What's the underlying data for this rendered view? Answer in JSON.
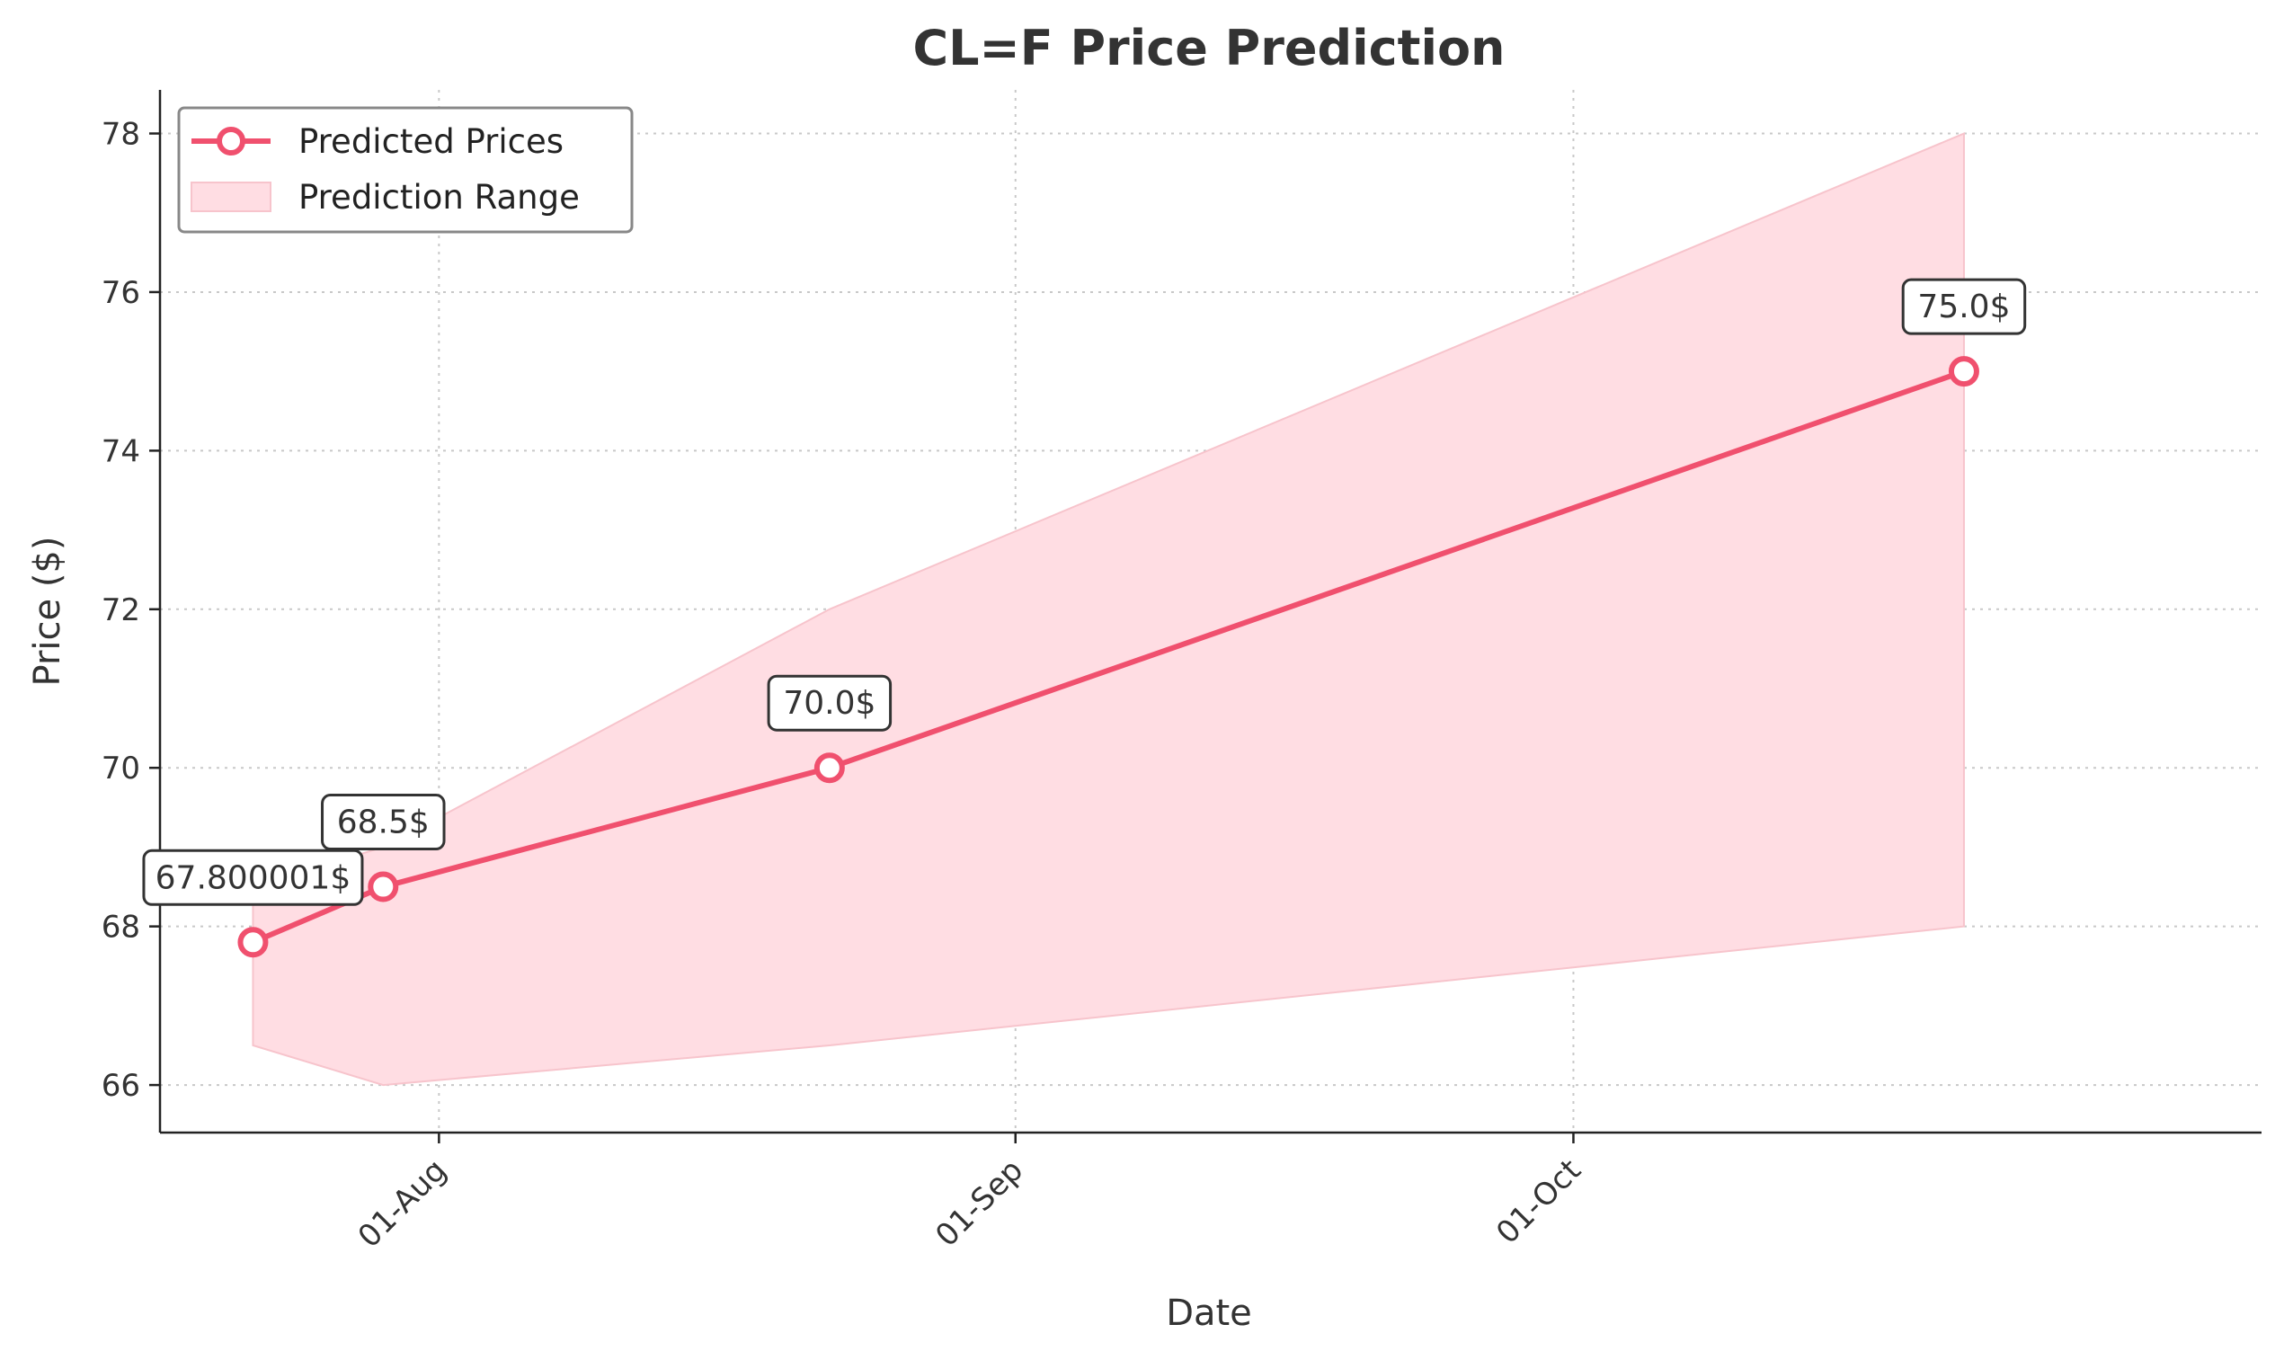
{
  "chart_data": {
    "type": "line",
    "title": "CL=F Price Prediction",
    "xlabel": "Date",
    "ylabel": "Price ($)",
    "x": [
      "2024-07-22",
      "2024-07-29",
      "2024-08-22",
      "2024-10-22"
    ],
    "series": [
      {
        "name": "Predicted Prices",
        "values": [
          67.800001,
          68.5,
          70.0,
          75.0
        ],
        "color": "#f0506e",
        "marker": "circle-hollow"
      }
    ],
    "range": {
      "name": "Prediction Range",
      "lower": [
        66.5,
        66.0,
        66.5,
        68.0
      ],
      "upper": [
        68.5,
        69.0,
        72.0,
        78.0
      ],
      "color": "#ffdde3"
    },
    "annotations": [
      "67.800001$",
      "68.5$",
      "70.0$",
      "75.0$"
    ],
    "xticks": [
      {
        "date": "2024-08-01",
        "label": "01-Aug"
      },
      {
        "date": "2024-09-01",
        "label": "01-Sep"
      },
      {
        "date": "2024-10-01",
        "label": "01-Oct"
      }
    ],
    "yticks": [
      66,
      68,
      70,
      72,
      74,
      76,
      78
    ],
    "ylim": [
      65.4,
      78.55
    ],
    "xlim": [
      "2024-07-17",
      "2024-11-07"
    ],
    "grid": true,
    "legend_position": "top-left"
  }
}
